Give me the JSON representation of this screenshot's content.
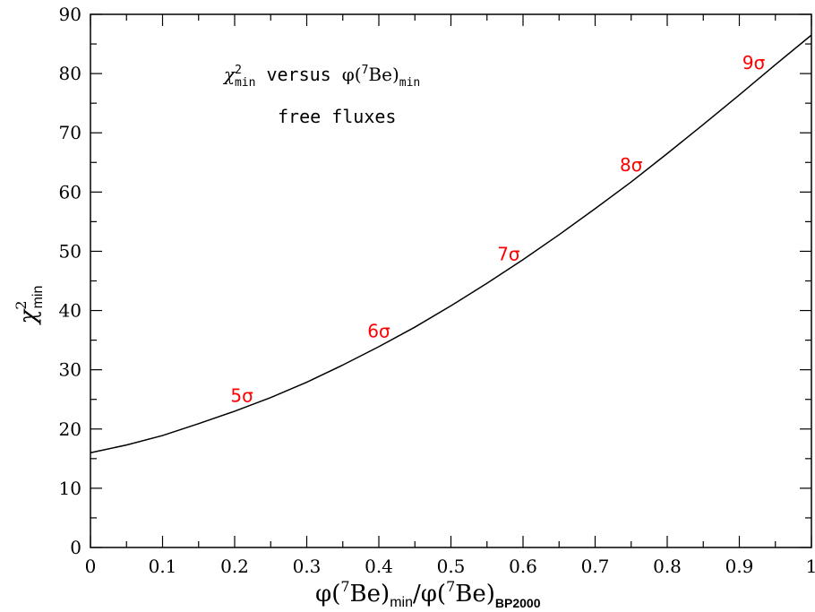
{
  "chart_data": {
    "type": "line",
    "xlabel_parts": {
      "phi": "φ(",
      "sup": "7",
      "be": "Be)",
      "sub1": "min",
      "slash": "/φ(",
      "sup2": "7",
      "be2": "Be)",
      "sub2": "BP2000"
    },
    "ylabel_parts": {
      "chi": "χ",
      "sup": "2",
      "sub": "min"
    },
    "annotation_line1_parts": {
      "chi": "χ",
      "sup": "2",
      "sub": "min",
      "mid": " versus ",
      "phi": "φ(",
      "sup7": "7",
      "be": "Be)",
      "sub2": "min"
    },
    "annotation_line2": "free fluxes",
    "xlim": [
      0,
      1
    ],
    "ylim": [
      0,
      90
    ],
    "x_ticks": [
      "0",
      "0.1",
      "0.2",
      "0.3",
      "0.4",
      "0.5",
      "0.6",
      "0.7",
      "0.8",
      "0.9",
      "1"
    ],
    "y_ticks": [
      "0",
      "10",
      "20",
      "30",
      "40",
      "50",
      "60",
      "70",
      "80",
      "90"
    ],
    "series": [
      {
        "x": [
          0,
          0.05,
          0.1,
          0.15,
          0.2,
          0.25,
          0.3,
          0.35,
          0.4,
          0.45,
          0.5,
          0.55,
          0.6,
          0.65,
          0.7,
          0.75,
          0.8,
          0.85,
          0.9,
          0.95,
          1.0
        ],
        "y": [
          16.0,
          17.3,
          18.9,
          20.9,
          23.0,
          25.3,
          27.9,
          30.8,
          33.9,
          37.2,
          40.8,
          44.6,
          48.6,
          52.8,
          57.2,
          61.7,
          66.5,
          71.4,
          76.4,
          81.5,
          86.5
        ]
      }
    ],
    "sigma_labels": [
      {
        "text": "5σ",
        "x": 0.21,
        "y": 24.6
      },
      {
        "text": "6σ",
        "x": 0.4,
        "y": 35.5
      },
      {
        "text": "7σ",
        "x": 0.58,
        "y": 48.5
      },
      {
        "text": "8σ",
        "x": 0.75,
        "y": 63.5
      },
      {
        "text": "9σ",
        "x": 0.92,
        "y": 80.8
      }
    ],
    "sigma_color": "#ff0000",
    "line_color": "#000000"
  }
}
